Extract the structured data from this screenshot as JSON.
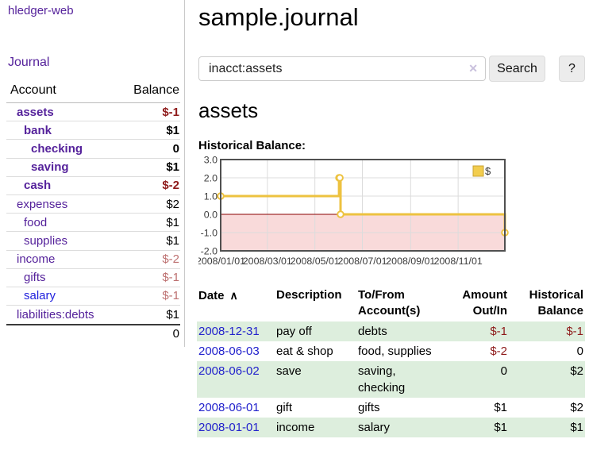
{
  "app": {
    "title": "hledger-web"
  },
  "sidebar": {
    "journal_link": "Journal",
    "accounts_header": {
      "account": "Account",
      "balance": "Balance"
    },
    "accounts": [
      {
        "name": "assets",
        "depth": 1,
        "balance": "$-1",
        "bold": true,
        "neg": "strong",
        "link_color": "purple"
      },
      {
        "name": "bank",
        "depth": 2,
        "balance": "$1",
        "bold": true,
        "neg": "none",
        "link_color": "purple"
      },
      {
        "name": "checking",
        "depth": 3,
        "balance": "0",
        "bold": true,
        "neg": "none",
        "link_color": "purple"
      },
      {
        "name": "saving",
        "depth": 3,
        "balance": "$1",
        "bold": true,
        "neg": "none",
        "link_color": "purple"
      },
      {
        "name": "cash",
        "depth": 2,
        "balance": "$-2",
        "bold": true,
        "neg": "strong",
        "link_color": "purple"
      },
      {
        "name": "expenses",
        "depth": 1,
        "balance": "$2",
        "bold": false,
        "neg": "none",
        "link_color": "purple"
      },
      {
        "name": "food",
        "depth": 2,
        "balance": "$1",
        "bold": false,
        "neg": "none",
        "link_color": "purple"
      },
      {
        "name": "supplies",
        "depth": 2,
        "balance": "$1",
        "bold": false,
        "neg": "none",
        "link_color": "purple"
      },
      {
        "name": "income",
        "depth": 1,
        "balance": "$-2",
        "bold": false,
        "neg": "soft",
        "link_color": "purple"
      },
      {
        "name": "gifts",
        "depth": 2,
        "balance": "$-1",
        "bold": false,
        "neg": "soft",
        "link_color": "purple"
      },
      {
        "name": "salary",
        "depth": 2,
        "balance": "$-1",
        "bold": false,
        "neg": "soft",
        "link_color": "blue"
      },
      {
        "name": "liabilities:debts",
        "depth": 1,
        "balance": "$1",
        "bold": false,
        "neg": "none",
        "link_color": "purple"
      }
    ],
    "total": "0"
  },
  "main": {
    "title": "sample.journal",
    "search": {
      "value": "inacct:assets",
      "clear_icon": "✕",
      "button_label": "Search",
      "help_label": "?"
    },
    "account_heading": "assets",
    "chart_heading": "Historical Balance:"
  },
  "chart_data": {
    "type": "line",
    "title": "Historical Balance",
    "step": true,
    "series": [
      {
        "name": "$",
        "points": [
          [
            "2008-01-01",
            1
          ],
          [
            "2008-06-01",
            2
          ],
          [
            "2008-06-02",
            2
          ],
          [
            "2008-06-03",
            0
          ],
          [
            "2008-12-31",
            -1
          ]
        ]
      }
    ],
    "xrange": [
      "2008-01-01",
      "2008-12-31"
    ],
    "ylim": [
      -2,
      3
    ],
    "yticks": [
      "3.0",
      "2.0",
      "1.0",
      "0.0",
      "-1.0",
      "-2.0"
    ],
    "ytick_values": [
      3,
      2,
      1,
      0,
      -1,
      -2
    ],
    "xticks": [
      "2008/01/01",
      "2008/03/01",
      "2008/05/01",
      "2008/07/01",
      "2008/09/01",
      "2008/11/01"
    ],
    "xtick_dates": [
      "2008-01-01",
      "2008-03-01",
      "2008-05-01",
      "2008-07-01",
      "2008-09-01",
      "2008-11-01"
    ],
    "legend": {
      "position": "top-right",
      "label": "$"
    },
    "grid": true,
    "colors": {
      "series": "#edc240",
      "marker_fill": "#ffffff",
      "negative_region": "#f9dada",
      "zero_line": "#8b0000",
      "gridline": "#dcdcdc",
      "border": "#505050",
      "tick_text": "#3a3a3a",
      "legend_square_fill": "#f2cd4e",
      "legend_square_border": "#c9a331"
    }
  },
  "transactions": {
    "sort_icon": "∧",
    "headers": [
      "Date",
      "Description",
      "To/From Account(s)",
      "Amount Out/In",
      "Historical Balance"
    ],
    "rows": [
      {
        "date": "2008-12-31",
        "description": "pay off",
        "accounts": "debts",
        "amount": "$-1",
        "balance": "$-1"
      },
      {
        "date": "2008-06-03",
        "description": "eat & shop",
        "accounts": "food, supplies",
        "amount": "$-2",
        "balance": "0"
      },
      {
        "date": "2008-06-02",
        "description": "save",
        "accounts": "saving, checking",
        "amount": "0",
        "balance": "$2"
      },
      {
        "date": "2008-06-01",
        "description": "gift",
        "accounts": "gifts",
        "amount": "$1",
        "balance": "$2"
      },
      {
        "date": "2008-01-01",
        "description": "income",
        "accounts": "salary",
        "amount": "$1",
        "balance": "$1"
      }
    ]
  },
  "colors": {
    "link_purple": "#55229b",
    "link_blue": "#2222dd",
    "negative_strong": "#8e1a1a",
    "negative_soft": "#bd7070",
    "row_green": "#ddeedd"
  }
}
